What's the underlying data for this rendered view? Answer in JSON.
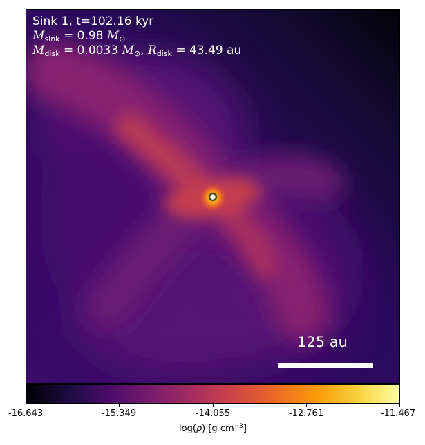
{
  "annotation": {
    "line1": "Sink 1, t=102.16 kyr",
    "m_sink_symbol": "M",
    "m_sink_sub": "sink",
    "m_sink_value": " = 0.98 ",
    "m_sun_symbol": "M",
    "sun_sub": "⊙",
    "m_disk_symbol": "M",
    "m_disk_sub": "disk",
    "m_disk_value": " = 0.0033 ",
    "separator": ", ",
    "r_disk_symbol": "R",
    "r_disk_sub": "disk",
    "r_disk_value": " = 43.49 au"
  },
  "scalebar": {
    "label": "125 au"
  },
  "colorbar": {
    "colormap": "inferno",
    "range": [
      -16.643,
      -11.467
    ],
    "ticks": [
      "-16.643",
      "-15.349",
      "-14.055",
      "-12.761",
      "-11.467"
    ],
    "label_prefix": "log(",
    "label_rho": "ρ",
    "label_units": ") [g cm",
    "label_exp": "−3",
    "label_suffix": "]"
  },
  "colors": {
    "ring": "#4a4a1a",
    "text": "#ffffff"
  }
}
